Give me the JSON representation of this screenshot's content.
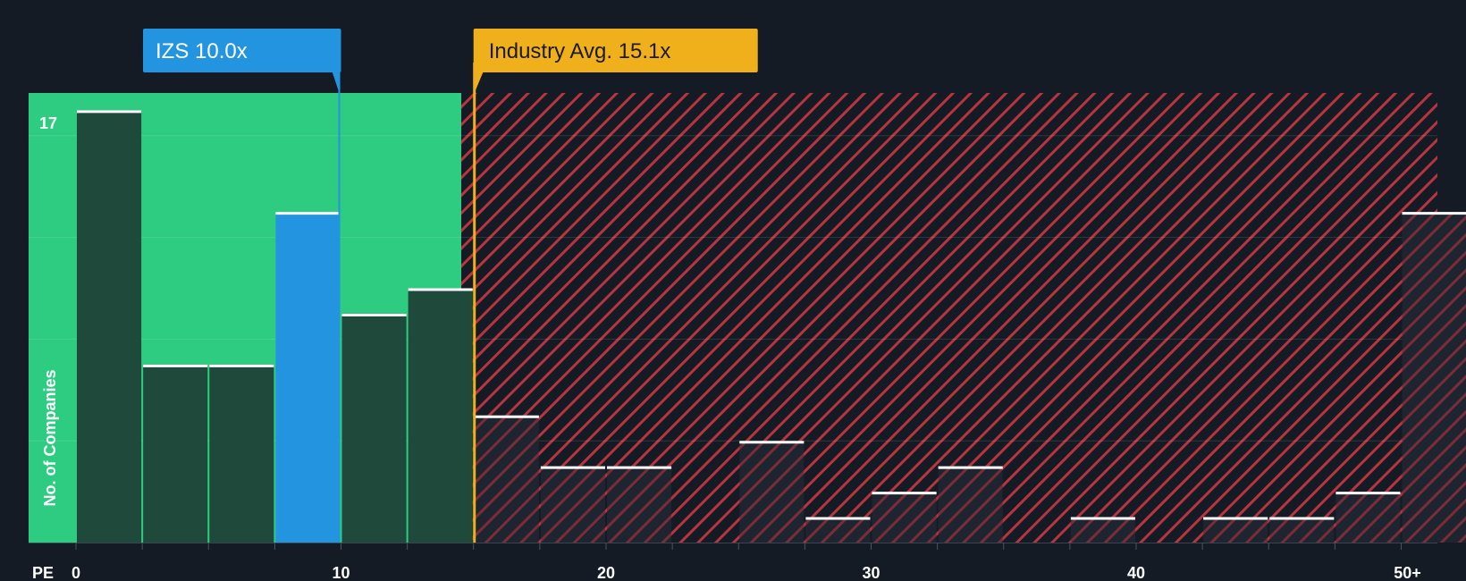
{
  "chart_data": {
    "type": "bar",
    "xlabel": "PE",
    "ylabel": "No. of Companies",
    "x_ticks": [
      "0",
      "10",
      "20",
      "30",
      "40",
      "50+"
    ],
    "y_ticks": [
      "17"
    ],
    "bin_width": 2.5,
    "bins": [
      {
        "start": 0,
        "value": 17
      },
      {
        "start": 2.5,
        "value": 7
      },
      {
        "start": 5,
        "value": 7
      },
      {
        "start": 7.5,
        "value": 13
      },
      {
        "start": 10,
        "value": 9
      },
      {
        "start": 12.5,
        "value": 10
      },
      {
        "start": 15,
        "value": 5
      },
      {
        "start": 17.5,
        "value": 3
      },
      {
        "start": 20,
        "value": 3
      },
      {
        "start": 22.5,
        "value": 0
      },
      {
        "start": 25,
        "value": 4
      },
      {
        "start": 27.5,
        "value": 1
      },
      {
        "start": 30,
        "value": 2
      },
      {
        "start": 32.5,
        "value": 3
      },
      {
        "start": 35,
        "value": 0
      },
      {
        "start": 37.5,
        "value": 1
      },
      {
        "start": 40,
        "value": 0
      },
      {
        "start": 42.5,
        "value": 1
      },
      {
        "start": 45,
        "value": 1
      },
      {
        "start": 47.5,
        "value": 2
      },
      {
        "start": 50,
        "value": 13
      }
    ],
    "highlight_bin_start": 7.5,
    "company": {
      "label": "IZS 10.0x",
      "value": 10.0
    },
    "industry": {
      "label": "Industry Avg. 15.1x",
      "value": 15.1
    },
    "fair_zone_end": 15.1,
    "colors": {
      "background": "#151b24",
      "fair_zone": "#2ecc80",
      "over_zone": "#e84755",
      "bar_dark": "#1f4a3b",
      "bar_highlight": "#2394e0",
      "company": "#2394e0",
      "industry": "#f0b01c"
    }
  }
}
